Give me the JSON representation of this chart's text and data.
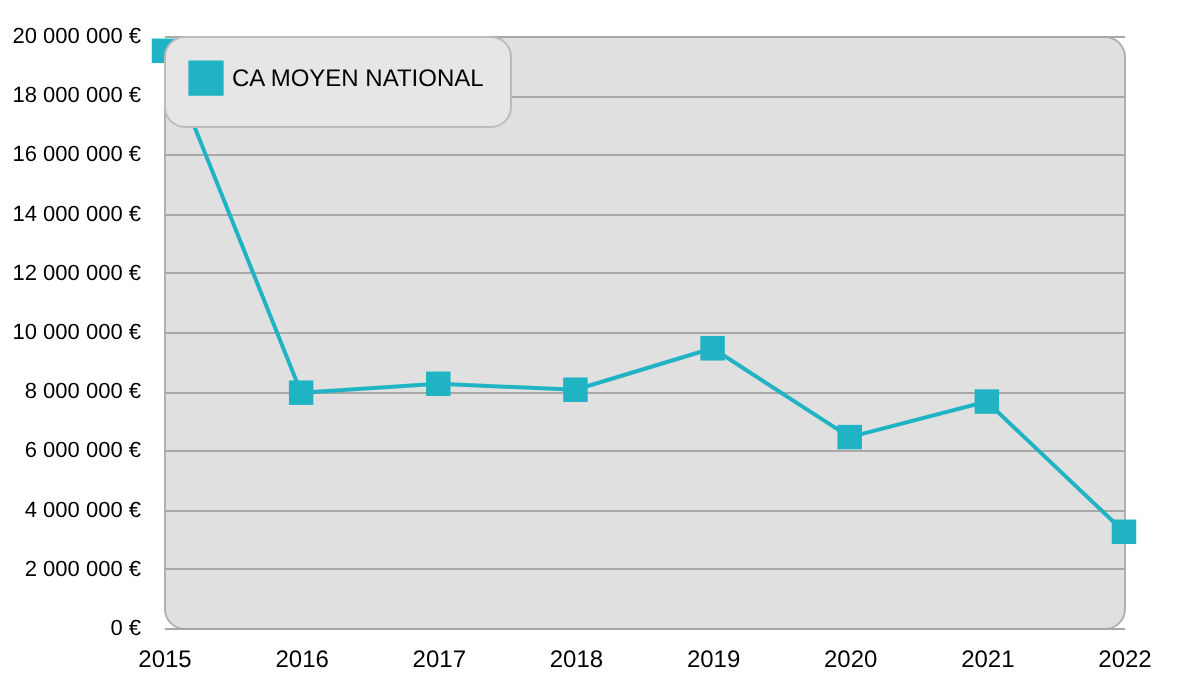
{
  "chart_data": {
    "type": "line",
    "x": [
      2015,
      2016,
      2017,
      2018,
      2019,
      2020,
      2021,
      2022
    ],
    "xlim": [
      2015,
      2022
    ],
    "xticks": [
      2015,
      2016,
      2017,
      2018,
      2019,
      2020,
      2021,
      2022
    ],
    "series": [
      {
        "name": "CA MOYEN NATIONAL",
        "color": "#1fb3c4",
        "values": [
          19500000,
          7950000,
          8250000,
          8050000,
          9450000,
          6450000,
          7650000,
          3250000
        ]
      }
    ],
    "ylim": [
      0,
      20000000
    ],
    "yticks": [
      {
        "value": 0,
        "label": "0 €"
      },
      {
        "value": 2000000,
        "label": "2 000 000 €"
      },
      {
        "value": 4000000,
        "label": "4 000 000 €"
      },
      {
        "value": 6000000,
        "label": "6 000 000 €"
      },
      {
        "value": 8000000,
        "label": "8 000 000 €"
      },
      {
        "value": 10000000,
        "label": "10 000 000 €"
      },
      {
        "value": 12000000,
        "label": "12 000 000 €"
      },
      {
        "value": 14000000,
        "label": "14 000 000 €"
      },
      {
        "value": 16000000,
        "label": "16 000 000 €"
      },
      {
        "value": 18000000,
        "label": "18 000 000 €"
      },
      {
        "value": 20000000,
        "label": "20 000 000 €"
      }
    ],
    "grid": "y",
    "legend": "top left",
    "marker": "square",
    "line_style": "solid"
  }
}
